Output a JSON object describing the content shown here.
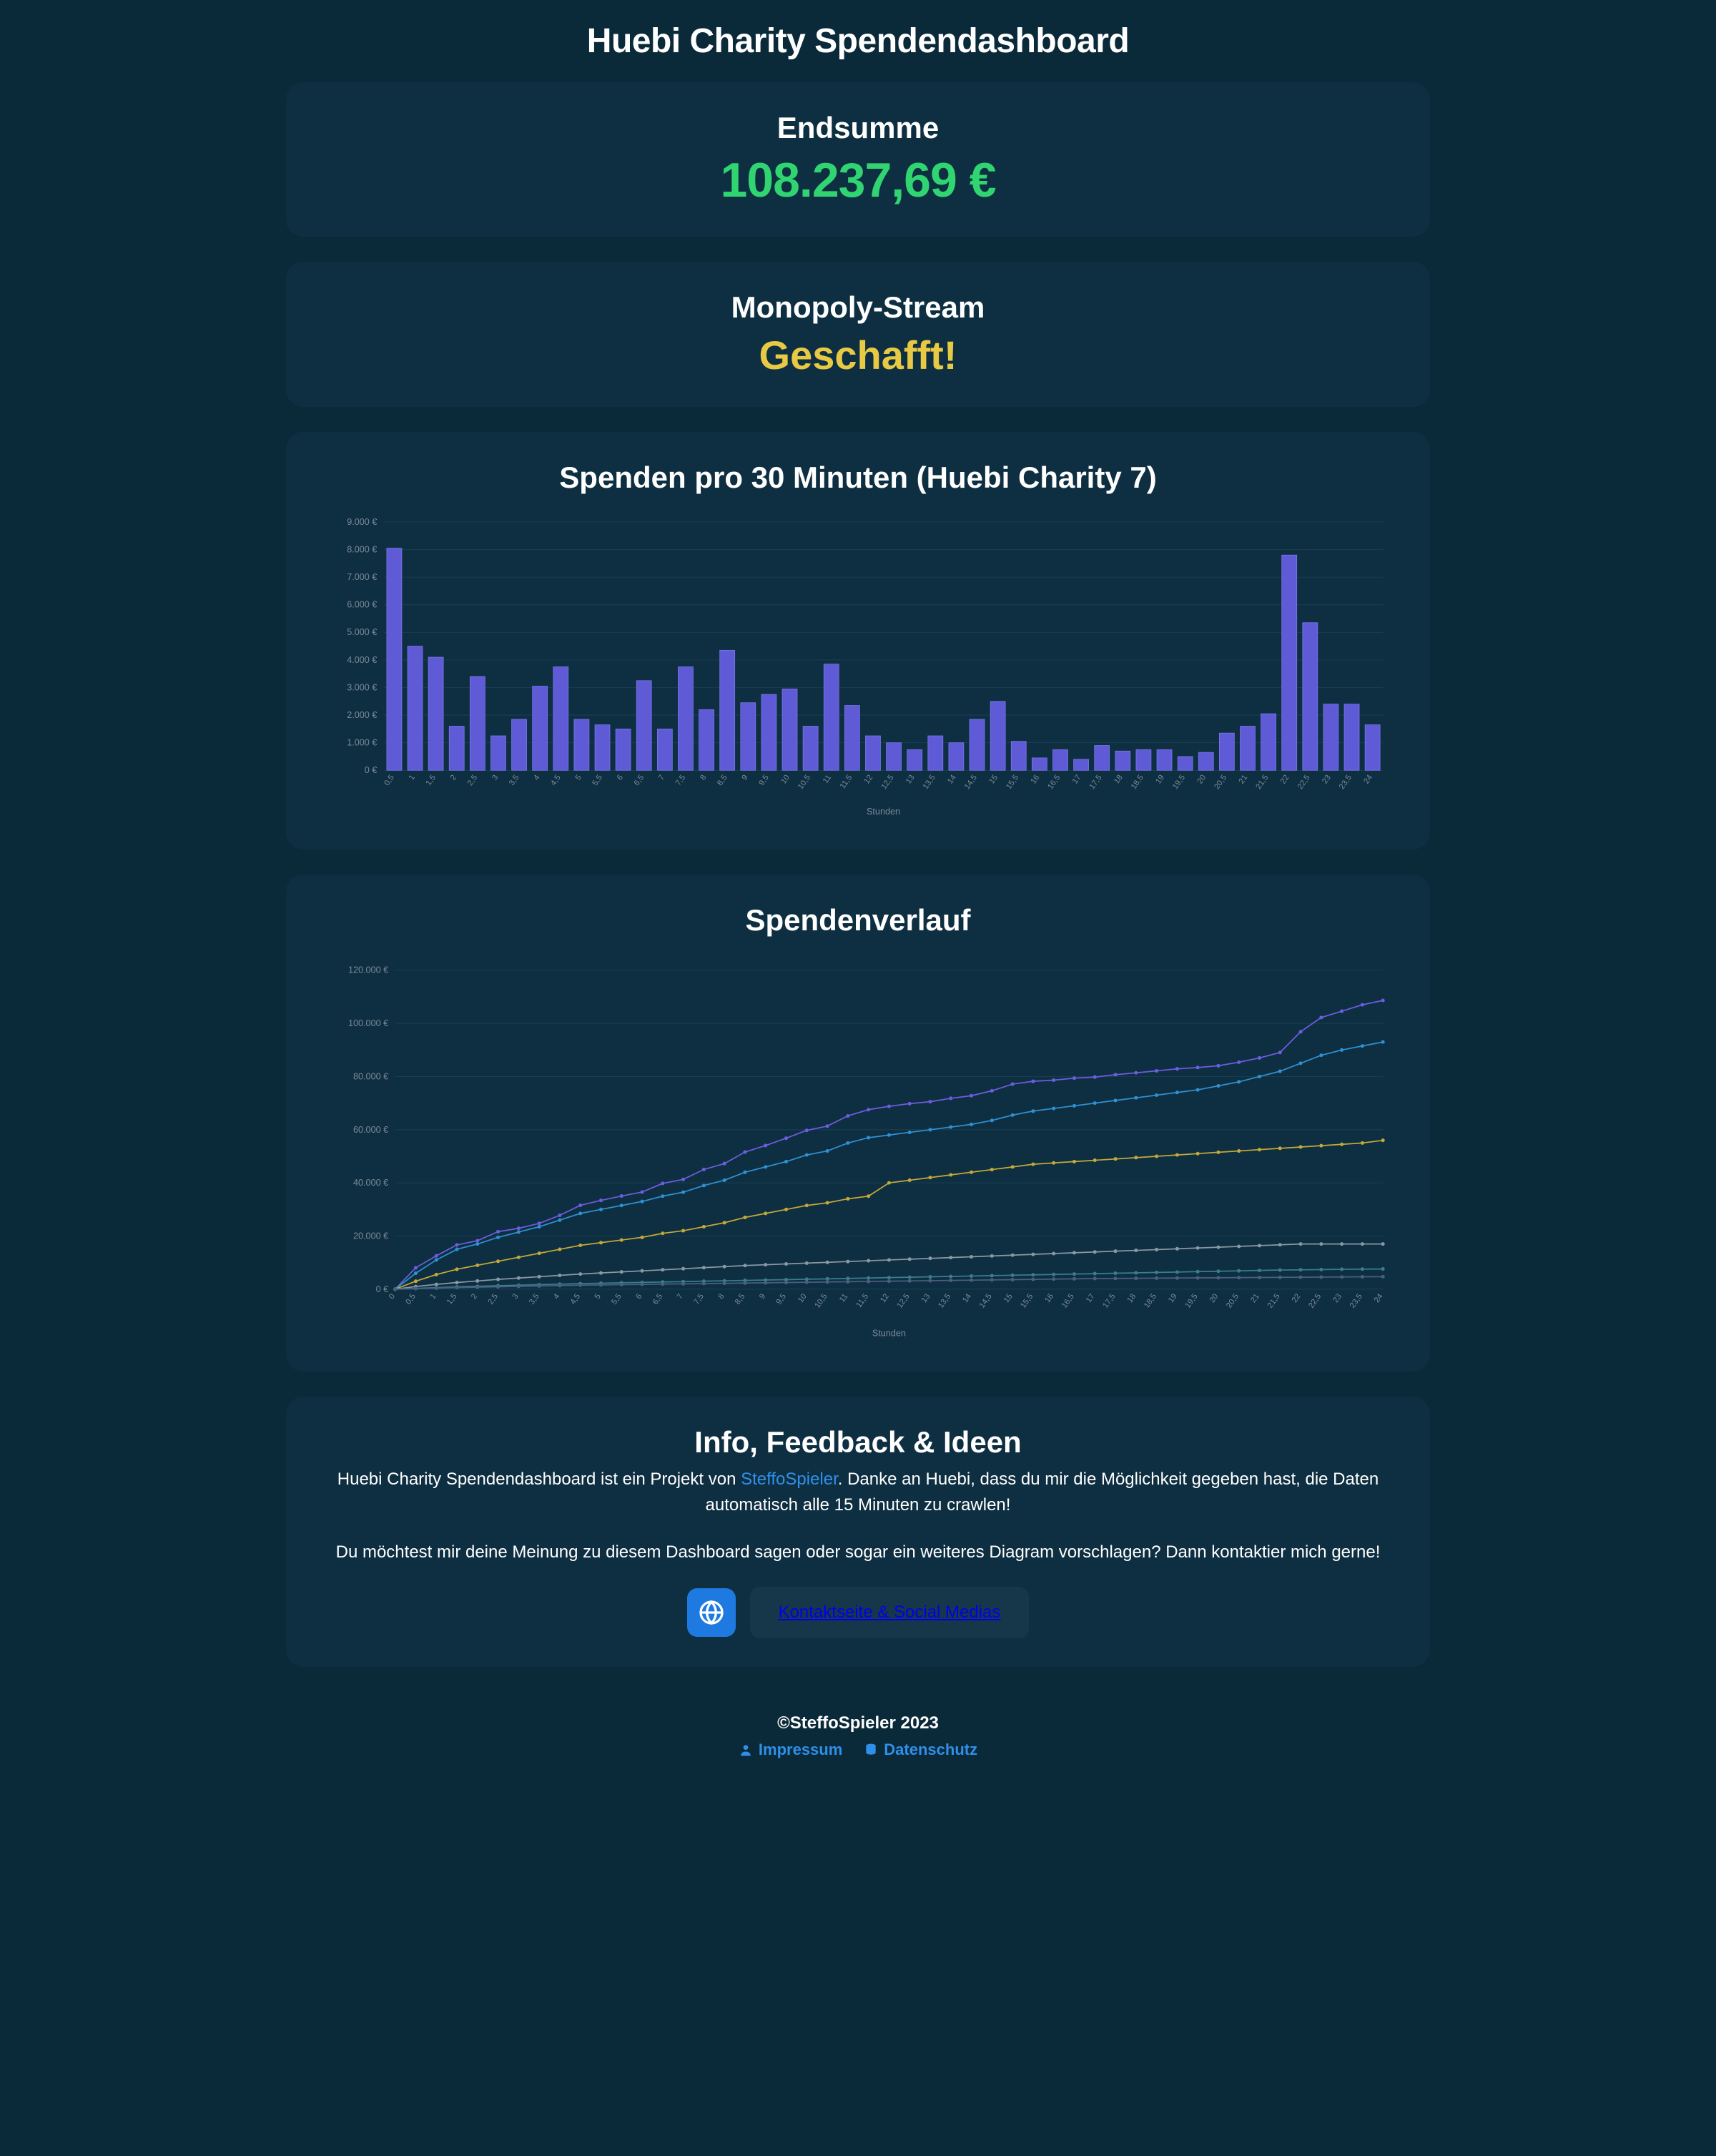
{
  "page_title": "Huebi Charity Spendendashboard",
  "cards": {
    "endsumme": {
      "title": "Endsumme",
      "value": "108.237,69 €",
      "value_color": "#30d571"
    },
    "monopoly": {
      "title": "Monopoly-Stream",
      "status": "Geschafft!",
      "status_color": "#e8c943"
    },
    "bar_chart": {
      "title": "Spenden pro 30 Minuten (Huebi Charity 7)",
      "type": "bar",
      "bar_color": "#5f5bd7",
      "bar_border": "#7a77e8",
      "grid_color": "#1c4256",
      "text_color": "#7a8a99",
      "background": "#0e2f41",
      "x_title": "Stunden",
      "x_labels": [
        "0,5",
        "1",
        "1,5",
        "2",
        "2,5",
        "3",
        "3,5",
        "4",
        "4,5",
        "5",
        "5,5",
        "6",
        "6,5",
        "7",
        "7,5",
        "8",
        "8,5",
        "9",
        "9,5",
        "10",
        "10,5",
        "11",
        "11,5",
        "12",
        "12,5",
        "13",
        "13,5",
        "14",
        "14,5",
        "15",
        "15,5",
        "16",
        "16,5",
        "17",
        "17,5",
        "18",
        "18,5",
        "19",
        "19,5",
        "20",
        "20,5",
        "21",
        "21,5",
        "22",
        "22,5",
        "23",
        "23,5",
        "24"
      ],
      "values": [
        8050,
        4500,
        4100,
        1600,
        3400,
        1250,
        1850,
        3050,
        3750,
        1850,
        1650,
        1500,
        3250,
        1500,
        3750,
        2200,
        4350,
        2450,
        2750,
        2950,
        1600,
        3850,
        2350,
        1250,
        1000,
        750,
        1250,
        1000,
        1850,
        2500,
        1050,
        450,
        750,
        400,
        900,
        700,
        750,
        750,
        500,
        650,
        1350,
        1600,
        2050,
        7800,
        5350,
        2400,
        2400,
        1650
      ],
      "ylim": [
        0,
        9000
      ],
      "ytick_step": 1000,
      "y_suffix": " €",
      "bar_width": 0.72
    },
    "line_chart": {
      "title": "Spendenverlauf",
      "type": "line",
      "grid_color": "#1c4256",
      "text_color": "#7a8a99",
      "background": "#0e2f41",
      "x_title": "Stunden",
      "x_labels": [
        "0",
        "0,5",
        "1",
        "1,5",
        "2",
        "2,5",
        "3",
        "3,5",
        "4",
        "4,5",
        "5",
        "5,5",
        "6",
        "6,5",
        "7",
        "7,5",
        "8",
        "8,5",
        "9",
        "9,5",
        "10",
        "10,5",
        "11",
        "11,5",
        "12",
        "12,5",
        "13",
        "13,5",
        "14",
        "14,5",
        "15",
        "15,5",
        "16",
        "16,5",
        "17",
        "17,5",
        "18",
        "18,5",
        "19",
        "19,5",
        "20",
        "20,5",
        "21",
        "21,5",
        "22",
        "22,5",
        "23",
        "23,5",
        "24"
      ],
      "ylim": [
        0,
        120000
      ],
      "ytick_step": 20000,
      "y_suffix": " €",
      "marker_radius": 3.2,
      "line_width": 2.2,
      "series": [
        {
          "color": "#6d5de0",
          "values": [
            0,
            8050,
            12550,
            16650,
            18250,
            21650,
            22900,
            24750,
            27800,
            31550,
            33400,
            35050,
            36550,
            39800,
            41300,
            45050,
            47250,
            51600,
            54050,
            56800,
            59750,
            61350,
            65200,
            67550,
            68800,
            69800,
            70550,
            71800,
            72800,
            74650,
            77150,
            78200,
            78650,
            79400,
            79800,
            80700,
            81400,
            82150,
            82900,
            83400,
            84050,
            85400,
            87000,
            89050,
            96850,
            102200,
            104600,
            107000,
            108650
          ]
        },
        {
          "color": "#2f90d3",
          "values": [
            0,
            6000,
            11000,
            15000,
            17000,
            19500,
            21500,
            23500,
            26000,
            28500,
            30000,
            31500,
            33000,
            35000,
            36500,
            39000,
            41000,
            44000,
            46000,
            48000,
            50500,
            52000,
            55000,
            57000,
            58000,
            59000,
            60000,
            61000,
            62000,
            63500,
            65500,
            67000,
            68000,
            69000,
            70000,
            71000,
            72000,
            73000,
            74000,
            75000,
            76500,
            78000,
            80000,
            82000,
            85000,
            88000,
            90000,
            91500,
            93000
          ]
        },
        {
          "color": "#c4a93a",
          "values": [
            0,
            3000,
            5500,
            7500,
            9000,
            10500,
            12000,
            13500,
            15000,
            16500,
            17500,
            18500,
            19500,
            21000,
            22000,
            23500,
            25000,
            27000,
            28500,
            30000,
            31500,
            32500,
            34000,
            35000,
            40000,
            41000,
            42000,
            43000,
            44000,
            45000,
            46000,
            47000,
            47500,
            48000,
            48500,
            49000,
            49500,
            50000,
            50500,
            51000,
            51500,
            52000,
            52500,
            53000,
            53500,
            54000,
            54500,
            55000,
            56000
          ]
        },
        {
          "color": "#8a97a4",
          "values": [
            0,
            1000,
            1800,
            2500,
            3100,
            3700,
            4200,
            4700,
            5200,
            5700,
            6100,
            6500,
            6900,
            7300,
            7700,
            8100,
            8500,
            8900,
            9200,
            9500,
            9800,
            10100,
            10400,
            10700,
            11000,
            11300,
            11600,
            11900,
            12200,
            12500,
            12800,
            13100,
            13400,
            13700,
            14000,
            14300,
            14600,
            14900,
            15200,
            15500,
            15800,
            16100,
            16400,
            16700,
            17000,
            17000,
            17000,
            17000,
            17000
          ]
        },
        {
          "color": "#3a7d8f",
          "values": [
            0,
            300,
            600,
            900,
            1100,
            1300,
            1500,
            1700,
            1900,
            2100,
            2250,
            2400,
            2550,
            2700,
            2850,
            3000,
            3150,
            3300,
            3450,
            3600,
            3750,
            3900,
            4050,
            4200,
            4350,
            4500,
            4650,
            4800,
            4950,
            5100,
            5250,
            5400,
            5550,
            5700,
            5850,
            6000,
            6150,
            6300,
            6450,
            6600,
            6750,
            6900,
            7050,
            7200,
            7300,
            7400,
            7500,
            7550,
            7600
          ]
        },
        {
          "color": "#4a5f80",
          "values": [
            0,
            200,
            400,
            600,
            750,
            900,
            1050,
            1200,
            1350,
            1500,
            1600,
            1700,
            1800,
            1900,
            2000,
            2100,
            2200,
            2300,
            2400,
            2500,
            2600,
            2700,
            2800,
            2900,
            3000,
            3100,
            3200,
            3300,
            3400,
            3500,
            3600,
            3700,
            3800,
            3900,
            4000,
            4050,
            4100,
            4150,
            4200,
            4250,
            4300,
            4350,
            4400,
            4450,
            4500,
            4550,
            4600,
            4650,
            4700
          ]
        }
      ]
    },
    "info": {
      "title": "Info, Feedback & Ideen",
      "p1_pre": "Huebi Charity Spendendashboard ist ein Projekt von ",
      "p1_link": "SteffoSpieler",
      "p1_post": ". Danke an Huebi, dass du mir die Möglichkeit gegeben hast, die Daten automatisch alle 15 Minuten zu crawlen!",
      "p2": "Du möchtest mir deine Meinung zu diesem Dashboard sagen oder sogar ein weiteres Diagram vorschlagen? Dann kontaktier mich gerne!",
      "contact_label": "Kontaktseite & Social Medias"
    }
  },
  "footer": {
    "copyright": "©SteffoSpieler 2023",
    "impressum": "Impressum",
    "datenschutz": "Datenschutz",
    "link_color": "#2f90ea"
  }
}
